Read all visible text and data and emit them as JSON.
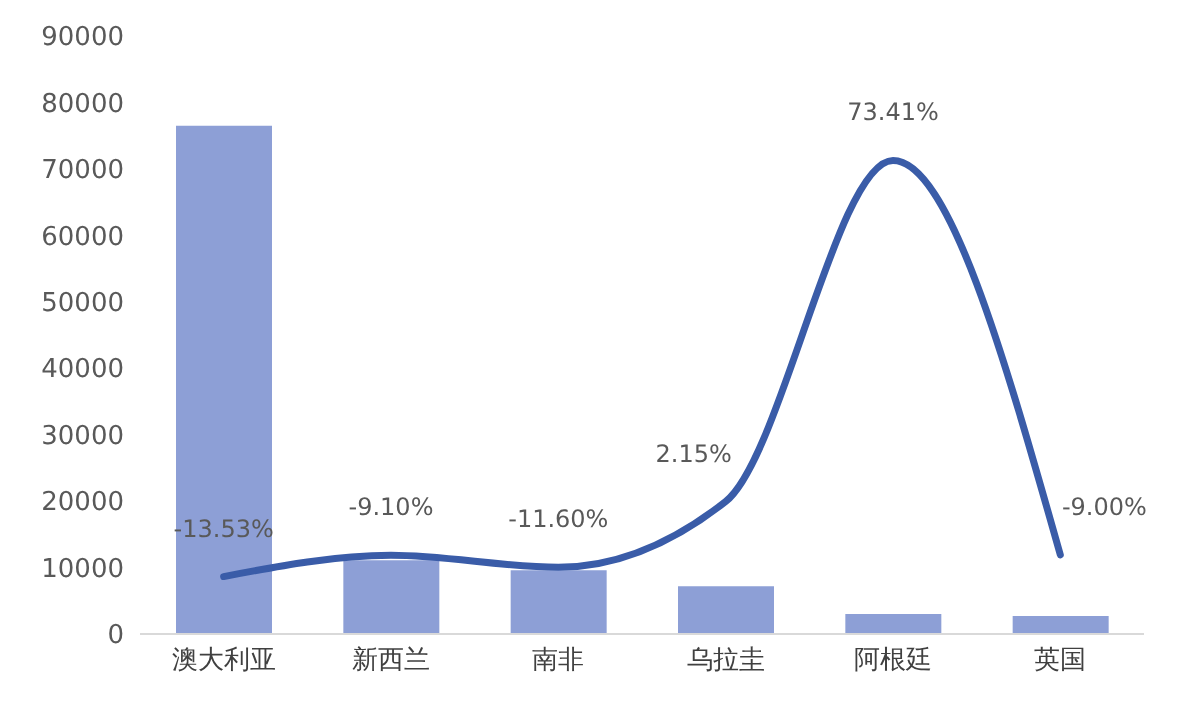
{
  "chart_data": {
    "type": "bar",
    "categories": [
      "澳大利亚",
      "新西兰",
      "南非",
      "乌拉圭",
      "阿根廷",
      "英国"
    ],
    "series": [
      {
        "color": "#8d9fd6",
        "values": [
          76500,
          11100,
          9600,
          7200,
          3000,
          2700
        ]
      },
      {
        "type": "line",
        "axis": "y2",
        "color": "#3a5ca8",
        "values": [
          -13.53,
          -9.1,
          -11.6,
          2.15,
          73.41,
          -9.0
        ],
        "value_labels": [
          "-13.53%",
          "-9.10%",
          "-11.60%",
          "2.15%",
          "73.41%",
          "-9.00%"
        ]
      }
    ],
    "ylim": [
      0,
      90000
    ],
    "yticks": [
      0,
      10000,
      20000,
      30000,
      40000,
      50000,
      60000,
      70000,
      80000,
      90000
    ],
    "grid": false,
    "legend": false,
    "marker": "none"
  }
}
